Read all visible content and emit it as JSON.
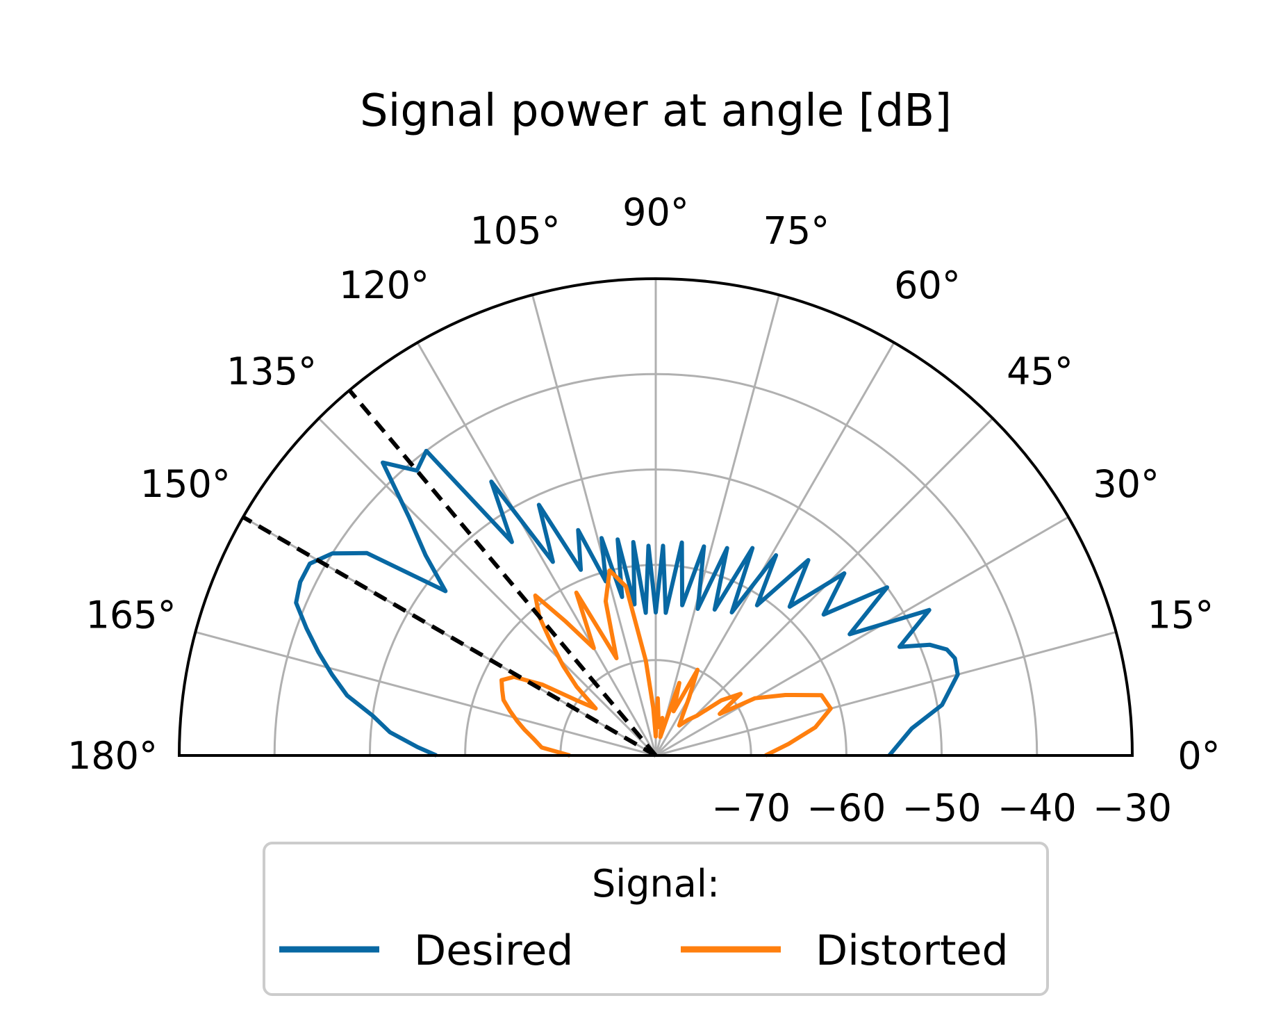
{
  "chart_data": {
    "type": "line",
    "projection": "polar-half",
    "title": "Signal power at angle [dB]",
    "theta_range_deg": [
      0,
      180
    ],
    "r_range": [
      -80,
      -30
    ],
    "r_ticks": [
      -70,
      -60,
      -50,
      -40,
      -30
    ],
    "r_tick_labels": [
      "−70",
      "−60",
      "−50",
      "−40",
      "−30"
    ],
    "theta_ticks": [
      0,
      15,
      30,
      45,
      60,
      75,
      90,
      105,
      120,
      135,
      150,
      165,
      180
    ],
    "theta_tick_labels": [
      "0°",
      "15°",
      "30°",
      "45°",
      "60°",
      "75°",
      "90°",
      "105°",
      "120°",
      "135°",
      "150°",
      "165°",
      "180°"
    ],
    "grid": true,
    "reference_lines": [
      {
        "theta": 130,
        "style": "dashed",
        "color": "#000000"
      },
      {
        "theta": 150,
        "style": "dashed",
        "color": "#000000"
      }
    ],
    "legend": {
      "title": "Signal:",
      "placement": "below",
      "columns": 2
    },
    "series": [
      {
        "name": "Desired",
        "color": "#0868A3",
        "theta": [
          0,
          6,
          10,
          15,
          18,
          20,
          22,
          24,
          28,
          32,
          36,
          40,
          44,
          48,
          52,
          56,
          59,
          62,
          65,
          68,
          71,
          74,
          77,
          80,
          83,
          86,
          88,
          90,
          92,
          94,
          96,
          98,
          100,
          102,
          104,
          106,
          109,
          112,
          115,
          118,
          121,
          124,
          127,
          130,
          133,
          136,
          139,
          142,
          145,
          148,
          151,
          154,
          157,
          160,
          163,
          166,
          169,
          172,
          175,
          178,
          180
        ],
        "values": [
          -55.5,
          -53,
          -49.5,
          -47.2,
          -47,
          -47.5,
          -49,
          -52,
          -47.5,
          -56,
          -50,
          -57,
          -52.5,
          -59,
          -54,
          -61,
          -55.5,
          -63,
          -56,
          -63.5,
          -57,
          -64,
          -57.5,
          -64,
          -57.5,
          -65,
          -58,
          -65,
          -58,
          -65,
          -57.5,
          -64,
          -57,
          -63,
          -56.5,
          -61,
          -55,
          -59,
          -51,
          -57,
          -46.5,
          -53,
          -40,
          -41,
          -38,
          -44,
          -48,
          -52,
          -43,
          -40,
          -38.5,
          -38.5,
          -39,
          -41,
          -43,
          -45,
          -47,
          -50,
          -52,
          -55,
          -57
        ]
      },
      {
        "name": "Distorted",
        "color": "#FF7F0E",
        "theta": [
          0,
          5,
          10,
          15,
          20,
          25,
          30,
          33,
          36,
          40,
          44,
          48,
          52,
          56,
          60,
          64,
          68,
          72,
          76,
          80,
          84,
          88,
          90,
          93,
          96,
          100,
          104,
          108,
          112,
          116,
          120,
          124,
          127,
          130,
          133,
          136,
          139,
          142,
          145,
          148,
          151,
          154,
          157,
          160,
          163,
          166,
          169,
          172,
          176,
          180
        ],
        "values": [
          -68.5,
          -66,
          -63,
          -61,
          -61.5,
          -65,
          -68,
          -72,
          -69,
          -71,
          -74,
          -75,
          -76,
          -75,
          -73,
          -70,
          -75,
          -72,
          -78,
          -76,
          -77,
          -74,
          -78,
          -75,
          -70,
          -62,
          -60,
          -63,
          -69,
          -61,
          -67,
          -63,
          -59,
          -61,
          -64,
          -66.5,
          -69,
          -72,
          -70,
          -66,
          -63,
          -62,
          -62.5,
          -63,
          -64,
          -65,
          -66,
          -67,
          -68,
          -71
        ]
      }
    ]
  }
}
